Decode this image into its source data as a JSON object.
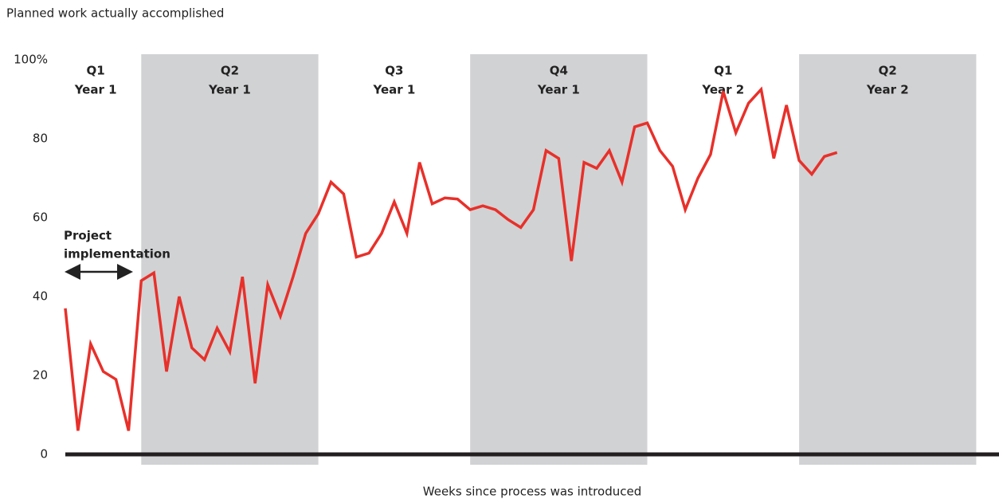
{
  "chart_data": {
    "type": "line",
    "title": "Planned work actually accomplished",
    "x_label": "Weeks since process was introduced",
    "x": [
      0,
      1,
      2,
      3,
      4,
      5,
      6,
      7,
      8,
      9,
      10,
      11,
      12,
      13,
      14,
      15,
      16,
      17,
      18,
      19,
      20,
      21,
      22,
      23,
      24,
      25,
      26,
      27,
      28,
      29,
      30,
      31,
      32,
      33,
      34,
      35,
      36,
      37,
      38,
      39,
      40,
      41,
      42,
      43,
      44,
      45,
      46,
      47,
      48,
      49,
      50,
      51,
      52,
      53,
      54,
      55,
      56,
      57,
      58,
      59,
      60,
      61
    ],
    "series": [
      {
        "name": "Planned work actually accomplished",
        "color": "#e8302a",
        "values": [
          37,
          6,
          28,
          21,
          19,
          6,
          44,
          46,
          21,
          40,
          27,
          24,
          32,
          26,
          45,
          18,
          43,
          35,
          45,
          56,
          61,
          69,
          66,
          50,
          51,
          56,
          64,
          56,
          74,
          63.5,
          65,
          64.7,
          62,
          63,
          62,
          59.5,
          57.5,
          62,
          77,
          75,
          49,
          74,
          72.5,
          77,
          69,
          83,
          84,
          77,
          73,
          62,
          70,
          76,
          92,
          81.5,
          89,
          92.5,
          75,
          88.5,
          74.5,
          71,
          75.5,
          76.5
        ]
      }
    ],
    "xlim": [
      0,
      73.8
    ],
    "ylim": [
      0,
      100
    ],
    "yticks": [
      0,
      20,
      40,
      60,
      80,
      {
        "value": 100,
        "label": "100%"
      }
    ],
    "bands": [
      {
        "quarter": "Q1",
        "year": "Year 1",
        "start": -1.2,
        "end": 6,
        "shaded": false
      },
      {
        "quarter": "Q2",
        "year": "Year 1",
        "start": 6,
        "end": 20,
        "shaded": true
      },
      {
        "quarter": "Q3",
        "year": "Year 1",
        "start": 20,
        "end": 32,
        "shaded": false
      },
      {
        "quarter": "Q4",
        "year": "Year 1",
        "start": 32,
        "end": 46,
        "shaded": true
      },
      {
        "quarter": "Q1",
        "year": "Year 2",
        "start": 46,
        "end": 58,
        "shaded": false
      },
      {
        "quarter": "Q2",
        "year": "Year 2",
        "start": 58,
        "end": 72,
        "shaded": true
      }
    ],
    "annotation": {
      "line_1": "Project",
      "line_2": "implementation"
    }
  }
}
